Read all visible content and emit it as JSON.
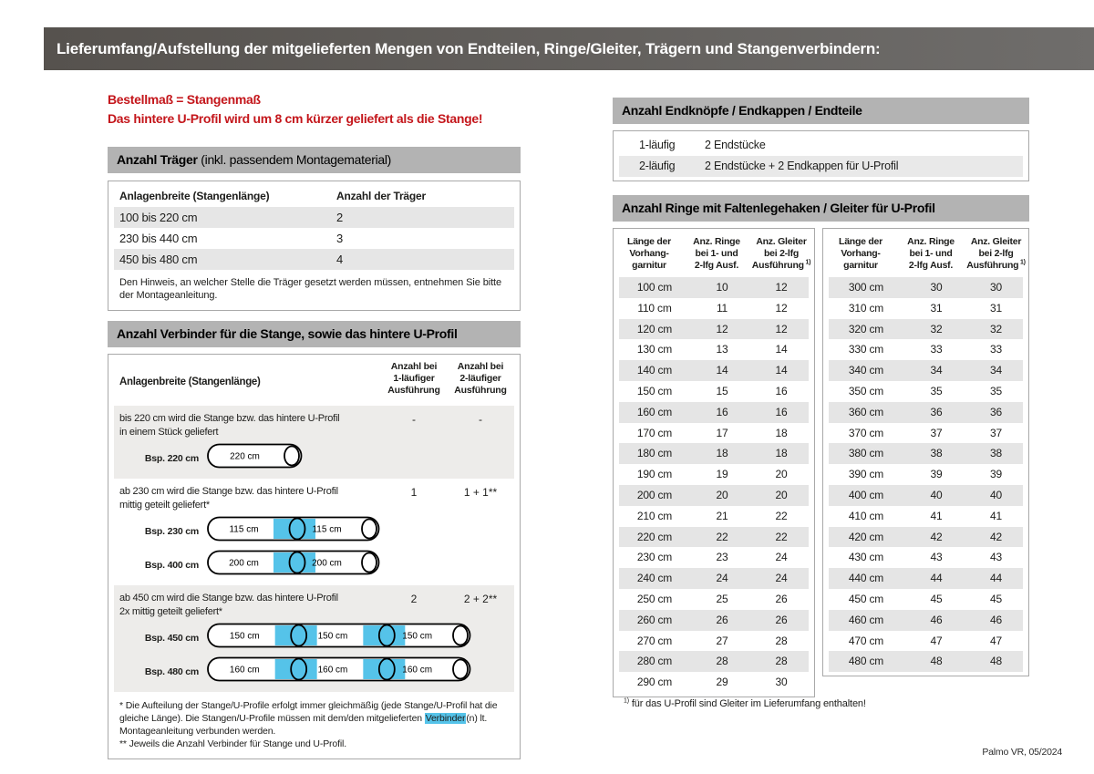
{
  "colors": {
    "bar_gray": "#5f5c58",
    "section_gray": "#b3b3b3",
    "red": "#c4161b",
    "cyan": "#55c3e9",
    "stripe_gray": "#e6e6e6"
  },
  "page": {
    "title": "Lieferumfang/Aufstellung der mitgelieferten Mengen von Endteilen, Ringe/Gleiter, Trägern und Stangenverbindern:",
    "footer": "Palmo VR, 05/2024"
  },
  "intro": {
    "line1": "Bestellmaß = Stangenmaß",
    "line2": "Das hintere U-Profil wird um 8 cm kürzer geliefert als die Stange!"
  },
  "traeger": {
    "title_bold": "Anzahl Träger",
    "title_rest": " (inkl. passendem Montagematerial)",
    "col1": "Anlagenbreite (Stangenlänge)",
    "col2": "Anzahl der Träger",
    "rows": [
      [
        "100 bis 220 cm",
        "2"
      ],
      [
        "230 bis 440 cm",
        "3"
      ],
      [
        "450 bis 480 cm",
        "4"
      ]
    ],
    "note": "Den Hinweis, an welcher Stelle die Träger gesetzt werden müssen, entnehmen Sie bitte der Montageanleitung."
  },
  "verbinder": {
    "title": "Anzahl Verbinder für die Stange, sowie das hintere U-Profil",
    "col1": "Anlagenbreite (Stangenlänge)",
    "col2_lines": [
      "Anzahl bei",
      "1-läufiger",
      "Ausführung"
    ],
    "col3_lines": [
      "Anzahl bei",
      "2-läufiger",
      "Ausführung"
    ],
    "rows": [
      {
        "lines": [
          "bis 220 cm wird die Stange bzw. das hintere U-Profil",
          "in einem Stück geliefert"
        ],
        "v1": "-",
        "v2": "-",
        "examples": [
          {
            "label": "Bsp. 220 cm",
            "segments": [
              "220 cm"
            ]
          }
        ]
      },
      {
        "lines": [
          "ab 230 cm wird die Stange bzw. das hintere U-Profil",
          "mittig geteilt geliefert*"
        ],
        "v1": "1",
        "v2": "1 + 1**",
        "examples": [
          {
            "label": "Bsp. 230 cm",
            "segments": [
              "115 cm",
              "115 cm"
            ]
          },
          {
            "label": "Bsp. 400 cm",
            "segments": [
              "200 cm",
              "200 cm"
            ]
          }
        ]
      },
      {
        "lines": [
          "ab 450 cm wird die Stange bzw. das hintere U-Profil",
          "2x mittig geteilt geliefert*"
        ],
        "v1": "2",
        "v2": "2 + 2**",
        "examples": [
          {
            "label": "Bsp. 450 cm",
            "segments": [
              "150 cm",
              "150 cm",
              "150 cm"
            ]
          },
          {
            "label": "Bsp. 480 cm",
            "segments": [
              "160 cm",
              "160 cm",
              "160 cm"
            ]
          }
        ]
      }
    ],
    "footnote1_pre": "* Die Aufteilung der Stange/U-Profile erfolgt immer gleichmäßig (jede Stange/U-Profil hat die gleiche Länge). Die Stangen/U-Profile müssen mit dem/den mitgelieferten ",
    "footnote1_highlight": "Verbinder",
    "footnote1_post": "(n) lt. Montageanleitung verbunden werden.",
    "footnote2": "** Jeweils die Anzahl Verbinder für Stange und U-Profil."
  },
  "endteile": {
    "title": "Anzahl Endknöpfe / Endkappen / Endteile",
    "rows": [
      [
        "1-läufig",
        "2 Endstücke"
      ],
      [
        "2-läufig",
        "2 Endstücke + 2 Endkappen für U-Profil"
      ]
    ]
  },
  "ringe": {
    "title": "Anzahl Ringe mit Faltenlegehaken / Gleiter für U-Profil",
    "columns": {
      "c1_lines": [
        "Länge der",
        "Vorhang-",
        "garnitur"
      ],
      "c2_lines": [
        "Anz. Ringe",
        "bei 1- und",
        "2-lfg Ausf."
      ],
      "c3_lines": [
        "Anz. Gleiter",
        "bei 2-lfg",
        "Ausführung"
      ],
      "c3_sup": "1)"
    },
    "left_rows": [
      [
        "100 cm",
        "10",
        "12"
      ],
      [
        "110 cm",
        "11",
        "12"
      ],
      [
        "120 cm",
        "12",
        "12"
      ],
      [
        "130 cm",
        "13",
        "14"
      ],
      [
        "140 cm",
        "14",
        "14"
      ],
      [
        "150 cm",
        "15",
        "16"
      ],
      [
        "160 cm",
        "16",
        "16"
      ],
      [
        "170 cm",
        "17",
        "18"
      ],
      [
        "180 cm",
        "18",
        "18"
      ],
      [
        "190 cm",
        "19",
        "20"
      ],
      [
        "200 cm",
        "20",
        "20"
      ],
      [
        "210 cm",
        "21",
        "22"
      ],
      [
        "220 cm",
        "22",
        "22"
      ],
      [
        "230 cm",
        "23",
        "24"
      ],
      [
        "240 cm",
        "24",
        "24"
      ],
      [
        "250 cm",
        "25",
        "26"
      ],
      [
        "260 cm",
        "26",
        "26"
      ],
      [
        "270 cm",
        "27",
        "28"
      ],
      [
        "280 cm",
        "28",
        "28"
      ],
      [
        "290 cm",
        "29",
        "30"
      ]
    ],
    "right_rows": [
      [
        "300 cm",
        "30",
        "30"
      ],
      [
        "310 cm",
        "31",
        "31"
      ],
      [
        "320 cm",
        "32",
        "32"
      ],
      [
        "330 cm",
        "33",
        "33"
      ],
      [
        "340 cm",
        "34",
        "34"
      ],
      [
        "350 cm",
        "35",
        "35"
      ],
      [
        "360 cm",
        "36",
        "36"
      ],
      [
        "370 cm",
        "37",
        "37"
      ],
      [
        "380 cm",
        "38",
        "38"
      ],
      [
        "390 cm",
        "39",
        "39"
      ],
      [
        "400 cm",
        "40",
        "40"
      ],
      [
        "410 cm",
        "41",
        "41"
      ],
      [
        "420 cm",
        "42",
        "42"
      ],
      [
        "430 cm",
        "43",
        "43"
      ],
      [
        "440 cm",
        "44",
        "44"
      ],
      [
        "450 cm",
        "45",
        "45"
      ],
      [
        "460 cm",
        "46",
        "46"
      ],
      [
        "470 cm",
        "47",
        "47"
      ],
      [
        "480 cm",
        "48",
        "48"
      ]
    ],
    "footnote_sup": "1)",
    "footnote": " für das U-Profil sind Gleiter im Lieferumfang enthalten!"
  }
}
